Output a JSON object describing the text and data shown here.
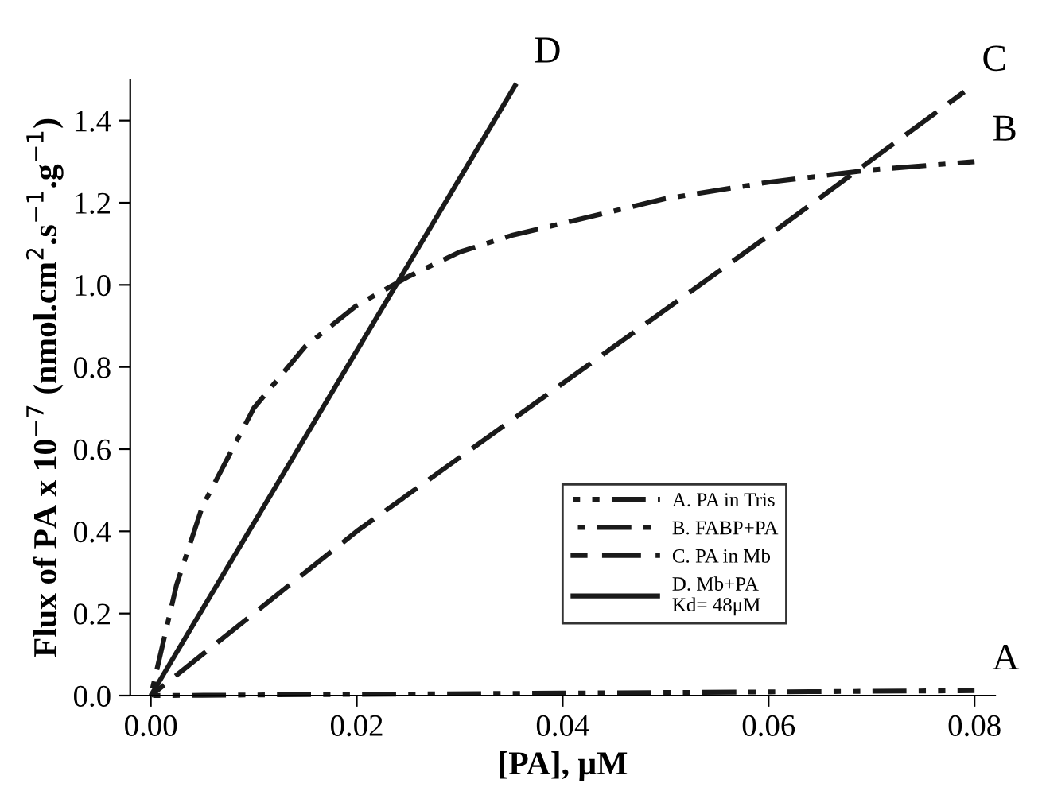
{
  "chart_data": {
    "type": "line",
    "xlabel": "[PA], μM",
    "ylabel": "Flux of PA x 10$^{−7}$ (nmol.cm$^{2}$.s$^{−1}$.g$^{−1}$)",
    "xlim": [
      -0.002,
      0.082
    ],
    "ylim": [
      0,
      1.5
    ],
    "xticks": [
      {
        "value": 0,
        "label": "0.00"
      },
      0.02,
      0.04,
      0.06,
      0.08
    ],
    "yticks": [
      {
        "value": 0,
        "label": "0.0"
      },
      0.2,
      0.4,
      0.6,
      0.8,
      {
        "value": 1,
        "label": "1.0"
      },
      1.2,
      1.4
    ],
    "grid": false,
    "legend": "right",
    "series": [
      {
        "name": "A. PA in Tris",
        "color": "#1a1a1a",
        "line_style": "dashdotdot",
        "x": [
          0,
          0.02,
          0.04,
          0.06,
          0.08
        ],
        "values": [
          0,
          0.003,
          0.006,
          0.009,
          0.012
        ]
      },
      {
        "name": "B. FABP+PA",
        "color": "#1a1a1a",
        "line_style": "dashdot",
        "x": [
          0,
          0.0025,
          0.005,
          0.01,
          0.015,
          0.02,
          0.025,
          0.03,
          0.035,
          0.04,
          0.05,
          0.06,
          0.07,
          0.08
        ],
        "values": [
          0,
          0.27,
          0.46,
          0.7,
          0.85,
          0.95,
          1.02,
          1.08,
          1.12,
          1.15,
          1.21,
          1.25,
          1.28,
          1.3
        ]
      },
      {
        "name": "C. PA in Mb",
        "color": "#1a1a1a",
        "line_style": "dashed",
        "x": [
          0,
          0.02,
          0.04,
          0.06,
          0.079
        ],
        "values": [
          0,
          0.4,
          0.76,
          1.12,
          1.47
        ]
      },
      {
        "name": "D. Mb+PA\nKd= 48μM",
        "color": "#1a1a1a",
        "line_style": "solid",
        "x": [
          0,
          0.0355
        ],
        "values": [
          0,
          1.49
        ]
      }
    ],
    "annotations": [
      {
        "text": "D",
        "x": 0.0355,
        "y": 1.49
      },
      {
        "text": "C",
        "x": 0.079,
        "y": 1.47
      },
      {
        "text": "B",
        "x": 0.08,
        "y": 1.3
      },
      {
        "text": "A",
        "x": 0.08,
        "y": 0.012
      }
    ]
  }
}
